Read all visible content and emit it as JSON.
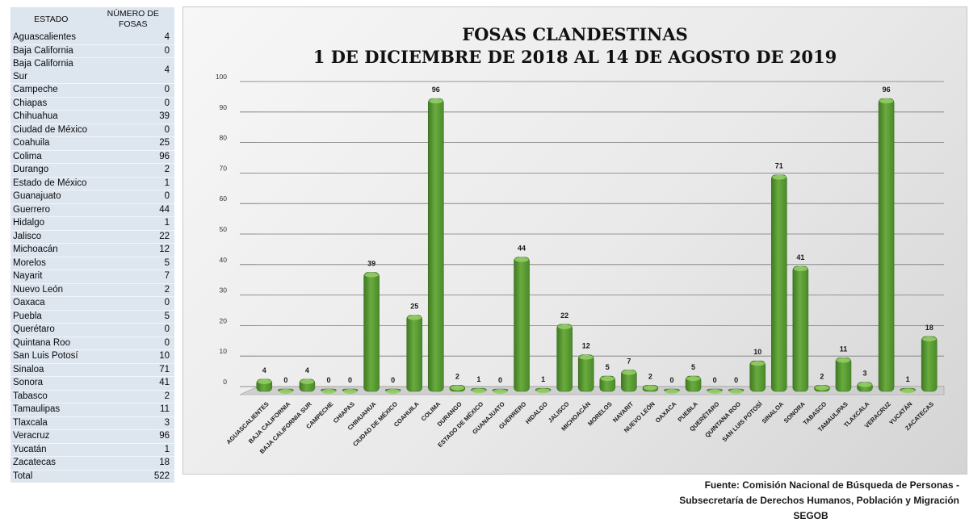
{
  "table": {
    "header_state": "ESTADO",
    "header_count": "NÚMERO DE FOSAS",
    "rows": [
      {
        "state": "Aguascalientes",
        "count": "4"
      },
      {
        "state": "Baja California",
        "count": "0"
      },
      {
        "state": "Baja California Sur",
        "count": "4"
      },
      {
        "state": "Campeche",
        "count": "0"
      },
      {
        "state": "Chiapas",
        "count": "0"
      },
      {
        "state": "Chihuahua",
        "count": "39"
      },
      {
        "state": "Ciudad de México",
        "count": "0"
      },
      {
        "state": "Coahuila",
        "count": "25"
      },
      {
        "state": "Colima",
        "count": "96"
      },
      {
        "state": "Durango",
        "count": "2"
      },
      {
        "state": "Estado de México",
        "count": "1"
      },
      {
        "state": "Guanajuato",
        "count": "0"
      },
      {
        "state": "Guerrero",
        "count": "44"
      },
      {
        "state": "Hidalgo",
        "count": "1"
      },
      {
        "state": "Jalisco",
        "count": "22"
      },
      {
        "state": "Michoacán",
        "count": "12"
      },
      {
        "state": "Morelos",
        "count": "5"
      },
      {
        "state": "Nayarit",
        "count": "7"
      },
      {
        "state": "Nuevo León",
        "count": "2"
      },
      {
        "state": "Oaxaca",
        "count": "0"
      },
      {
        "state": "Puebla",
        "count": "5"
      },
      {
        "state": "Querétaro",
        "count": "0"
      },
      {
        "state": "Quintana Roo",
        "count": "0"
      },
      {
        "state": "San Luis Potosí",
        "count": "10"
      },
      {
        "state": "Sinaloa",
        "count": "71"
      },
      {
        "state": "Sonora",
        "count": "41"
      },
      {
        "state": "Tabasco",
        "count": "2"
      },
      {
        "state": "Tamaulipas",
        "count": "11"
      },
      {
        "state": "Tlaxcala",
        "count": "3"
      },
      {
        "state": "Veracruz",
        "count": "96"
      },
      {
        "state": "Yucatán",
        "count": "1"
      },
      {
        "state": "Zacatecas",
        "count": "18"
      }
    ],
    "total_label": "Total",
    "total_value": "522"
  },
  "chart_data": {
    "type": "bar",
    "title_line1": "FOSAS CLANDESTINAS",
    "title_line2": "1 DE DICIEMBRE DE 2018 AL 14 DE AGOSTO DE 2019",
    "categories": [
      "AGUASCALIENTES",
      "BAJA CALIFORNIA",
      "BAJA CALIFORNIA SUR",
      "CAMPECHE",
      "CHIAPAS",
      "CHIHUAHUA",
      "CIUDAD DE MÉXICO",
      "COAHUILA",
      "COLIMA",
      "DURANGO",
      "ESTADO DE MÉXICO",
      "GUANAJUATO",
      "GUERRERO",
      "HIDALGO",
      "JALISCO",
      "MICHOACÁN",
      "MORELOS",
      "NAYARIT",
      "NUEVO LEÓN",
      "OAXACA",
      "PUEBLA",
      "QUERÉTARO",
      "QUINTANA ROO",
      "SAN LUIS POTOSÍ",
      "SINALOA",
      "SONORA",
      "TABASCO",
      "TAMAULIPAS",
      "TLAXCALA",
      "VERACRUZ",
      "YUCATÁN",
      "ZACATECAS"
    ],
    "values": [
      4,
      0,
      4,
      0,
      0,
      39,
      0,
      25,
      96,
      2,
      1,
      0,
      44,
      1,
      22,
      12,
      5,
      7,
      2,
      0,
      5,
      0,
      0,
      10,
      71,
      41,
      2,
      11,
      3,
      96,
      1,
      18
    ],
    "ylim": [
      0,
      100
    ],
    "yticks": [
      0,
      10,
      20,
      30,
      40,
      50,
      60,
      70,
      80,
      90,
      100
    ],
    "grid": true,
    "bar_color": "#6aab3f",
    "data_labels": true
  },
  "source": {
    "line1": "Fuente: Comisión Nacional de Búsqueda de Personas -",
    "line2": "Subsecretaría de Derechos Humanos, Población y Migración",
    "line3": "SEGOB"
  }
}
